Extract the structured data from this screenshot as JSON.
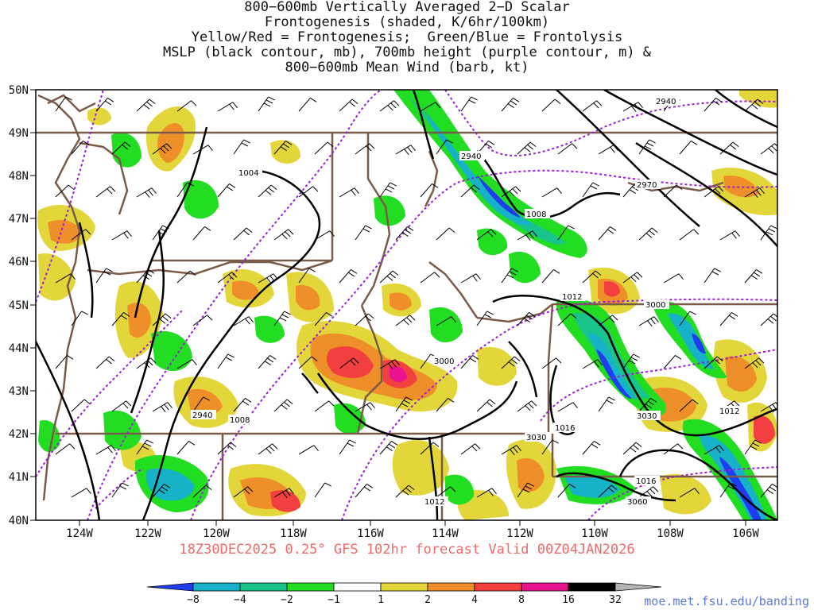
{
  "title": {
    "lines": [
      "800−600mb Vertically Averaged 2−D Scalar",
      "Frontogenesis (shaded, K/6hr/100km)",
      "Yellow/Red = Frontogenesis;  Green/Blue = Frontolysis",
      "MSLP (black contour, mb), 700mb height (purple contour, m) &",
      "800−600mb Mean Wind (barb, kt)"
    ]
  },
  "map": {
    "lat_labels": [
      "50N",
      "49N",
      "48N",
      "47N",
      "46N",
      "45N",
      "44N",
      "43N",
      "42N",
      "41N",
      "40N"
    ],
    "lon_labels": [
      "124W",
      "122W",
      "120W",
      "118W",
      "116W",
      "114W",
      "112W",
      "110W",
      "108W",
      "106W"
    ],
    "colors": {
      "mslp": "#000000",
      "height": "#9b1fd6",
      "border": "#7a5a48",
      "barb": "#000000"
    },
    "mslp_labels": [
      "1004",
      "1008",
      "1012",
      "1008",
      "1016",
      "1012",
      "1012",
      "1016"
    ],
    "height_labels": [
      "2940",
      "2940",
      "2970",
      "3000",
      "3000",
      "2940",
      "3030",
      "3030",
      "3060"
    ]
  },
  "colorbar": {
    "ticks": [
      "−8",
      "−4",
      "−2",
      "−1",
      "1",
      "2",
      "4",
      "8",
      "16",
      "32"
    ],
    "colors": [
      "#1f3cf0",
      "#17b2c8",
      "#19c48c",
      "#22dd22",
      "#ffffff",
      "#e3d63a",
      "#ef8f2a",
      "#f24040",
      "#ea138e",
      "#000000",
      "#b4b4b4"
    ]
  },
  "caption": "18Z30DEC2025 0.25° GFS 102hr forecast Valid 00Z04JAN2026",
  "credit": "moe.met.fsu.edu/banding"
}
